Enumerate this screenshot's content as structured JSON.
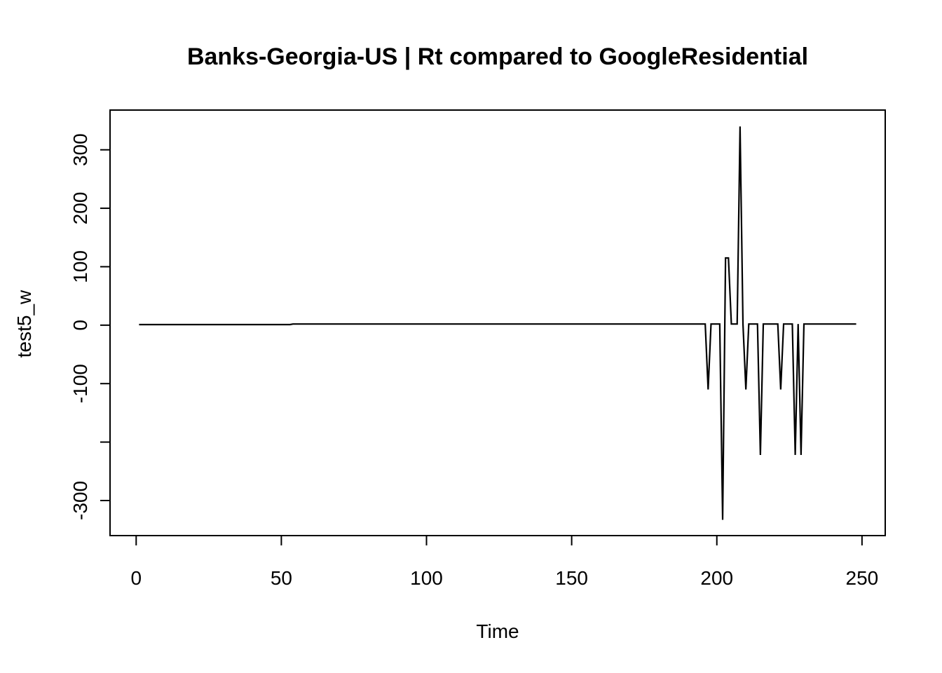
{
  "chart_data": {
    "type": "line",
    "title": "Banks-Georgia-US | Rt compared to GoogleResidential",
    "xlabel": "Time",
    "ylabel": "test5_w",
    "xlim": [
      -9,
      258
    ],
    "ylim": [
      -360,
      368
    ],
    "x_ticks": [
      0,
      50,
      100,
      150,
      200,
      250
    ],
    "x_tick_labels": [
      "0",
      "50",
      "100",
      "150",
      "200",
      "250"
    ],
    "y_ticks": [
      -300,
      -200,
      -100,
      0,
      100,
      200,
      300
    ],
    "y_tick_labels": [
      "-300",
      "",
      "-100",
      "0",
      "100",
      "200",
      "300"
    ],
    "grid": false,
    "legend": "none",
    "line_color": "#000000",
    "series": [
      {
        "x": [
          1,
          53,
          54,
          195,
          196,
          197,
          198,
          199,
          200,
          201,
          202,
          203,
          204,
          205,
          206,
          207,
          208,
          209,
          210,
          211,
          212,
          213,
          214,
          215,
          216,
          217,
          218,
          219,
          220,
          221,
          222,
          223,
          224,
          225,
          226,
          227,
          228,
          229,
          230,
          231,
          232,
          233,
          234,
          235,
          236,
          237,
          238,
          239,
          240,
          241,
          242,
          243,
          244,
          245,
          246,
          247,
          248
        ],
        "values": [
          1,
          1,
          2,
          2,
          2,
          -110,
          2,
          2,
          2,
          2,
          -333,
          115,
          115,
          2,
          2,
          2,
          340,
          2,
          -110,
          2,
          2,
          2,
          2,
          -222,
          2,
          2,
          2,
          2,
          2,
          2,
          -110,
          2,
          2,
          2,
          2,
          -222,
          2,
          -222,
          2,
          2,
          2,
          2,
          2,
          2,
          2,
          2,
          2,
          2,
          2,
          2,
          2,
          2,
          2,
          2,
          2,
          2,
          2
        ]
      }
    ]
  }
}
